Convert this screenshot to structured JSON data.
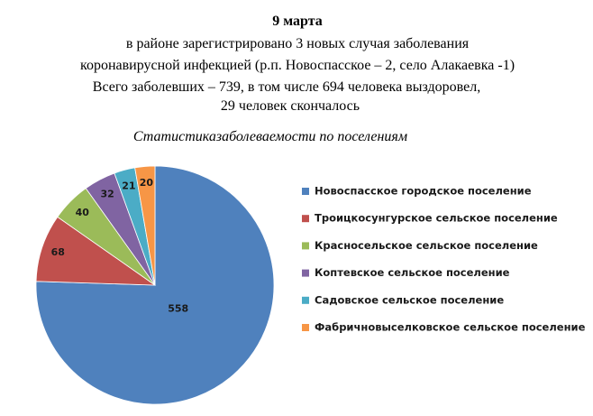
{
  "header": {
    "date": "9 марта",
    "lines": [
      "в районе  зарегистрировано 3 новых  случая заболевания",
      "коронавирусной инфекцией  (р.п. Новоспасское – 2, село  Алакаевка -1)",
      "Всего заболевших – 739, в том числе 694 человека выздоровел,",
      "29 человек скончалось"
    ]
  },
  "chart_data": {
    "type": "pie",
    "title": "Статистиказаболеваемости по поселениям",
    "categories": [
      "Новоспасское  городское поселение",
      "Троицкосунгурское  сельское поселение",
      "Красносельское  сельское поселение",
      "Коптевское сельское поселение",
      "Садовское сельское поселение",
      "Фабричновыселковское  сельское поселение"
    ],
    "values": [
      558,
      68,
      40,
      32,
      21,
      20
    ],
    "colors": [
      "#4f81bd",
      "#c0504d",
      "#9bbb59",
      "#8064a2",
      "#4bacc6",
      "#f79646"
    ],
    "legend": "right"
  }
}
